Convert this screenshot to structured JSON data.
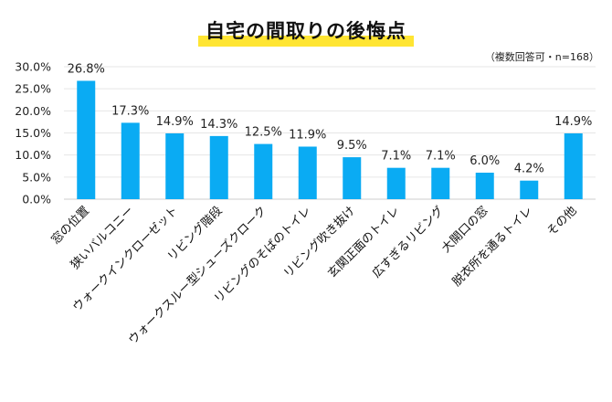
{
  "title": "自宅の間取りの後悔点",
  "note": "（複数回答可・n=168）",
  "colors": {
    "bar": "#0aabf3",
    "highlight": "#ffe533",
    "grid": "#e6e6e6"
  },
  "chart_data": {
    "type": "bar",
    "title": "自宅の間取りの後悔点",
    "xlabel": "",
    "ylabel": "",
    "categories": [
      "窓の位置",
      "狭いバルコニー",
      "ウォークインクローゼット",
      "リビング階段",
      "ウォークスルー型シューズクローク",
      "リビングのそばのトイレ",
      "リビング吹き抜け",
      "玄関正面のトイレ",
      "広すぎるリビング",
      "大開口の窓",
      "脱衣所を通るトイレ",
      "その他"
    ],
    "values": [
      26.8,
      17.3,
      14.9,
      14.3,
      12.5,
      11.9,
      9.5,
      7.1,
      7.1,
      6.0,
      4.2,
      14.9
    ],
    "value_labels": [
      "26.8%",
      "17.3%",
      "14.9%",
      "14.3%",
      "12.5%",
      "11.9%",
      "9.5%",
      "7.1%",
      "7.1%",
      "6.0%",
      "4.2%",
      "14.9%"
    ],
    "ylim": [
      0,
      30
    ],
    "yticks": [
      0,
      5,
      10,
      15,
      20,
      25,
      30
    ],
    "ytick_labels": [
      "0.0%",
      "5.0%",
      "10.0%",
      "15.0%",
      "20.0%",
      "25.0%",
      "30.0%"
    ],
    "grid": true,
    "legend": "none"
  }
}
